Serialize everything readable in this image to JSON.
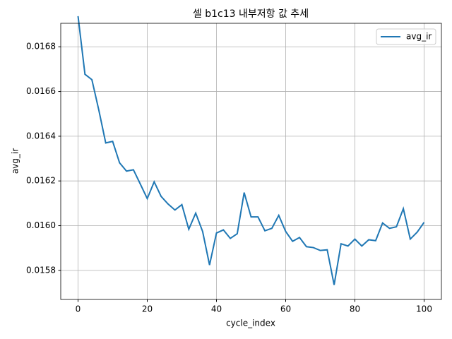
{
  "chart_data": {
    "type": "line",
    "title": "셀 b1c13 내부저항 값 추세",
    "xlabel": "cycle_index",
    "ylabel": "avg_ir",
    "x": [
      0,
      2,
      4,
      6,
      8,
      10,
      12,
      14,
      16,
      18,
      20,
      22,
      24,
      26,
      28,
      30,
      32,
      34,
      36,
      38,
      40,
      42,
      44,
      46,
      48,
      50,
      52,
      54,
      56,
      58,
      60,
      62,
      64,
      66,
      68,
      70,
      72,
      74,
      76,
      78,
      80,
      82,
      84,
      86,
      88,
      90,
      92,
      94,
      96,
      98,
      100
    ],
    "series": [
      {
        "name": "avg_ir",
        "color": "#1f77b4",
        "values": [
          0.016937,
          0.016677,
          0.016653,
          0.016517,
          0.01637,
          0.016377,
          0.016281,
          0.016244,
          0.01625,
          0.016186,
          0.016121,
          0.016196,
          0.016131,
          0.016097,
          0.01607,
          0.016094,
          0.015984,
          0.016056,
          0.015974,
          0.015824,
          0.015967,
          0.015981,
          0.015943,
          0.015964,
          0.016148,
          0.016039,
          0.016039,
          0.015977,
          0.015988,
          0.016046,
          0.015974,
          0.01593,
          0.015947,
          0.015906,
          0.015902,
          0.015889,
          0.015892,
          0.015735,
          0.015919,
          0.015909,
          0.01594,
          0.015909,
          0.015937,
          0.015933,
          0.016012,
          0.015988,
          0.015995,
          0.016076,
          0.01594,
          0.015971,
          0.016015
        ]
      }
    ],
    "xlim": [
      -5,
      105
    ],
    "ylim": [
      0.01567,
      0.016905
    ],
    "xticks": [
      0,
      20,
      40,
      60,
      80,
      100
    ],
    "yticks": [
      0.0158,
      {
        "value": 0.016,
        "label": "0.0160"
      },
      0.0162,
      0.0164,
      0.0166,
      0.0168
    ],
    "grid": true,
    "legend": "upper right"
  }
}
